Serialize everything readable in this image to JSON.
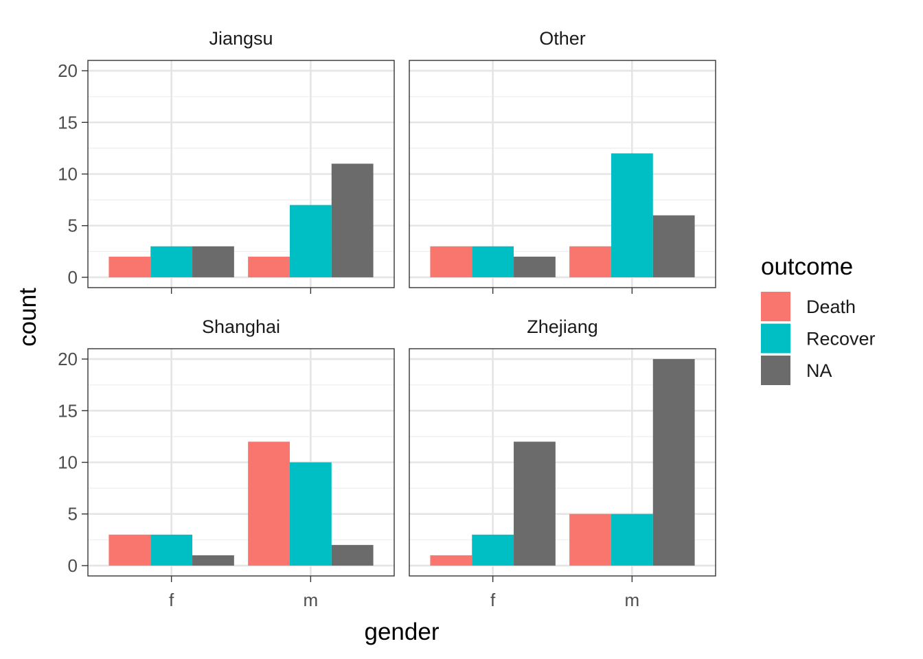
{
  "chart_data": {
    "type": "bar",
    "facets": [
      "Jiangsu",
      "Other",
      "Shanghai",
      "Zhejiang"
    ],
    "categories": [
      "f",
      "m"
    ],
    "xlabel": "gender",
    "ylabel": "count",
    "ylim": [
      0,
      20
    ],
    "yticks": [
      0,
      5,
      10,
      15,
      20
    ],
    "legend": {
      "title": "outcome",
      "position": "right",
      "entries": [
        {
          "name": "Death",
          "color": "#F8766D"
        },
        {
          "name": "Recover",
          "color": "#00BFC4"
        },
        {
          "name": "NA",
          "color": "#6B6B6B"
        }
      ]
    },
    "panels": [
      {
        "facet": "Jiangsu",
        "series": [
          {
            "name": "Death",
            "values": [
              2,
              2
            ]
          },
          {
            "name": "Recover",
            "values": [
              3,
              7
            ]
          },
          {
            "name": "NA",
            "values": [
              3,
              11
            ]
          }
        ]
      },
      {
        "facet": "Other",
        "series": [
          {
            "name": "Death",
            "values": [
              3,
              3
            ]
          },
          {
            "name": "Recover",
            "values": [
              3,
              12
            ]
          },
          {
            "name": "NA",
            "values": [
              2,
              6
            ]
          }
        ]
      },
      {
        "facet": "Shanghai",
        "series": [
          {
            "name": "Death",
            "values": [
              3,
              12
            ]
          },
          {
            "name": "Recover",
            "values": [
              3,
              10
            ]
          },
          {
            "name": "NA",
            "values": [
              1,
              2
            ]
          }
        ]
      },
      {
        "facet": "Zhejiang",
        "series": [
          {
            "name": "Death",
            "values": [
              1,
              5
            ]
          },
          {
            "name": "Recover",
            "values": [
              3,
              5
            ]
          },
          {
            "name": "NA",
            "values": [
              12,
              20
            ]
          }
        ]
      }
    ],
    "grid": true
  }
}
